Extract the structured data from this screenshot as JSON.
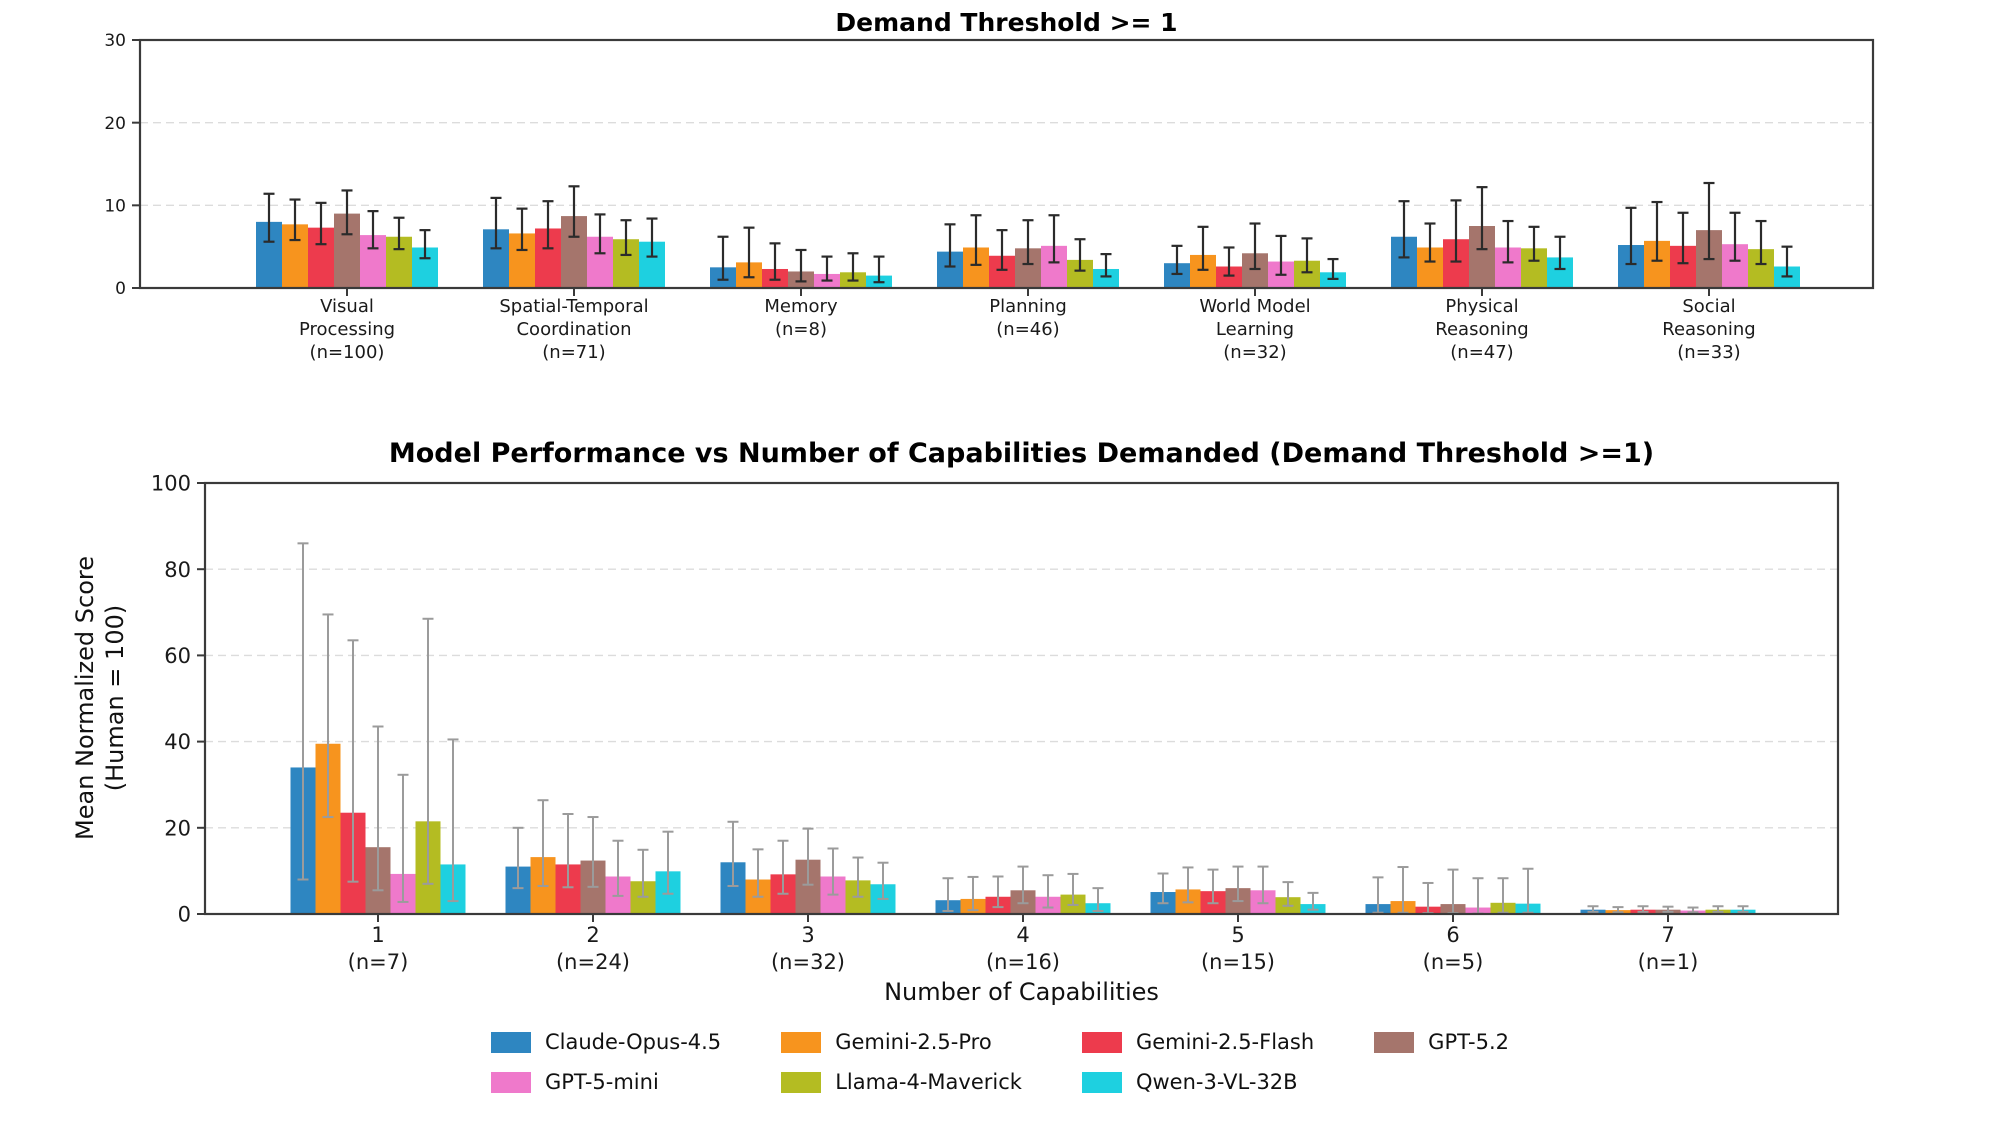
{
  "figure": {
    "background": "#ffffff",
    "spine_color": "#3a3a3a",
    "grid_color": "#dcdcdc"
  },
  "legend": {
    "items": [
      {
        "label": "Claude-Opus-4.5",
        "color": "#2e86c1"
      },
      {
        "label": "Gemini-2.5-Pro",
        "color": "#f7941e"
      },
      {
        "label": "Gemini-2.5-Flash",
        "color": "#ed3b4d"
      },
      {
        "label": "GPT-5.2",
        "color": "#a5756c"
      },
      {
        "label": "GPT-5-mini",
        "color": "#ef79cb"
      },
      {
        "label": "Llama-4-Maverick",
        "color": "#b4bc22"
      },
      {
        "label": "Qwen-3-VL-32B",
        "color": "#1ed0e0"
      }
    ]
  },
  "chart_data": [
    {
      "type": "bar",
      "title": "Demand Threshold >= 1",
      "xlabel": "",
      "ylabel": "",
      "ylim": [
        0,
        30
      ],
      "yticks": [
        0,
        10,
        20,
        30
      ],
      "grid": "dashed-horizontal",
      "legend_position": "none",
      "error_bar_color": "#2b2b2b",
      "categories": [
        [
          "Visual",
          "Processing",
          "(n=100)"
        ],
        [
          "Spatial-Temporal",
          "Coordination",
          "(n=71)"
        ],
        [
          "Memory",
          "(n=8)"
        ],
        [
          "Planning",
          "(n=46)"
        ],
        [
          "World Model",
          "Learning",
          "(n=32)"
        ],
        [
          "Physical",
          "Reasoning",
          "(n=47)"
        ],
        [
          "Social",
          "Reasoning",
          "(n=33)"
        ]
      ],
      "series": [
        {
          "name": "Claude-Opus-4.5",
          "color": "#2e86c1",
          "values": [
            8.0,
            7.1,
            2.5,
            4.4,
            3.0,
            6.2,
            5.2
          ],
          "err_up": [
            3.4,
            3.8,
            3.7,
            3.3,
            2.1,
            4.3,
            4.5
          ],
          "err_down": [
            2.4,
            2.3,
            1.5,
            1.8,
            1.3,
            2.5,
            2.3
          ]
        },
        {
          "name": "Gemini-2.5-Pro",
          "color": "#f7941e",
          "values": [
            7.7,
            6.6,
            3.1,
            4.9,
            4.0,
            4.9,
            5.7
          ],
          "err_up": [
            3.0,
            3.0,
            4.2,
            3.9,
            3.4,
            2.9,
            4.7
          ],
          "err_down": [
            1.9,
            2.0,
            1.8,
            2.1,
            1.8,
            1.7,
            2.4
          ]
        },
        {
          "name": "Gemini-2.5-Flash",
          "color": "#ed3b4d",
          "values": [
            7.3,
            7.2,
            2.3,
            3.9,
            2.6,
            5.9,
            5.1
          ],
          "err_up": [
            3.0,
            3.3,
            3.1,
            3.1,
            2.3,
            4.7,
            4.0
          ],
          "err_down": [
            2.0,
            2.4,
            1.3,
            1.7,
            1.1,
            2.7,
            2.1
          ]
        },
        {
          "name": "GPT-5.2",
          "color": "#a5756c",
          "values": [
            9.0,
            8.7,
            2.0,
            4.8,
            4.2,
            7.5,
            7.0
          ],
          "err_up": [
            2.8,
            3.6,
            2.6,
            3.4,
            3.6,
            4.7,
            5.7
          ],
          "err_down": [
            2.5,
            2.5,
            1.2,
            1.9,
            1.9,
            2.8,
            3.5
          ]
        },
        {
          "name": "GPT-5-mini",
          "color": "#ef79cb",
          "values": [
            6.4,
            6.2,
            1.7,
            5.1,
            3.2,
            4.9,
            5.3
          ],
          "err_up": [
            2.9,
            2.7,
            2.1,
            3.7,
            3.1,
            3.2,
            3.8
          ],
          "err_down": [
            1.6,
            2.0,
            0.8,
            2.0,
            1.6,
            1.8,
            2.0
          ]
        },
        {
          "name": "Llama-4-Maverick",
          "color": "#b4bc22",
          "values": [
            6.2,
            5.9,
            1.9,
            3.4,
            3.3,
            4.8,
            4.7
          ],
          "err_up": [
            2.3,
            2.3,
            2.3,
            2.5,
            2.7,
            2.6,
            3.4
          ],
          "err_down": [
            1.5,
            1.9,
            1.0,
            1.3,
            1.4,
            1.5,
            1.8
          ]
        },
        {
          "name": "Qwen-3-VL-32B",
          "color": "#1ed0e0",
          "values": [
            4.9,
            5.6,
            1.5,
            2.3,
            1.9,
            3.7,
            2.6
          ],
          "err_up": [
            2.1,
            2.8,
            2.3,
            1.8,
            1.6,
            2.5,
            2.4
          ],
          "err_down": [
            1.3,
            1.8,
            0.8,
            0.9,
            0.8,
            1.4,
            1.2
          ]
        }
      ]
    },
    {
      "type": "bar",
      "title": "Model Performance vs Number of Capabilities Demanded (Demand Threshold >=1)",
      "xlabel": "Number of Capabilities",
      "ylabel": "Mean Normalized Score (Human = 100)",
      "ylabel_lines": [
        "Mean Normalized Score",
        "(Human = 100)"
      ],
      "ylim": [
        0,
        100
      ],
      "yticks": [
        0,
        20,
        40,
        60,
        80,
        100
      ],
      "grid": "dashed-horizontal",
      "legend_position": "below",
      "error_bar_color": "#9b9b9b",
      "categories": [
        [
          "1",
          "(n=7)"
        ],
        [
          "2",
          "(n=24)"
        ],
        [
          "3",
          "(n=32)"
        ],
        [
          "4",
          "(n=16)"
        ],
        [
          "5",
          "(n=15)"
        ],
        [
          "6",
          "(n=5)"
        ],
        [
          "7",
          "(n=1)"
        ]
      ],
      "series": [
        {
          "name": "Claude-Opus-4.5",
          "color": "#2e86c1",
          "values": [
            34.0,
            11.0,
            12.0,
            3.2,
            5.1,
            2.3,
            1.0
          ],
          "err_up": [
            52.0,
            9.0,
            9.4,
            5.1,
            4.3,
            6.2,
            0.8
          ],
          "err_down": [
            26.0,
            5.0,
            5.5,
            2.5,
            2.6,
            2.0,
            0.5
          ]
        },
        {
          "name": "Gemini-2.5-Pro",
          "color": "#f7941e",
          "values": [
            39.5,
            13.2,
            8.0,
            3.5,
            5.7,
            3.0,
            0.9
          ],
          "err_up": [
            30.0,
            13.2,
            7.0,
            5.1,
            5.1,
            7.9,
            0.7
          ],
          "err_down": [
            17.0,
            6.7,
            4.0,
            2.6,
            3.0,
            2.7,
            0.5
          ]
        },
        {
          "name": "Gemini-2.5-Flash",
          "color": "#ed3b4d",
          "values": [
            23.5,
            11.5,
            9.2,
            4.0,
            5.3,
            1.7,
            1.0
          ],
          "err_up": [
            40.0,
            11.7,
            7.8,
            4.7,
            5.0,
            5.5,
            0.8
          ],
          "err_down": [
            16.0,
            5.3,
            4.5,
            2.4,
            2.8,
            1.5,
            0.5
          ]
        },
        {
          "name": "GPT-5.2",
          "color": "#a5756c",
          "values": [
            15.5,
            12.4,
            12.6,
            5.5,
            6.0,
            2.3,
            1.0
          ],
          "err_up": [
            28.0,
            10.1,
            7.2,
            5.5,
            5.0,
            8.0,
            0.7
          ],
          "err_down": [
            10.0,
            6.1,
            5.8,
            3.0,
            3.0,
            2.1,
            0.5
          ]
        },
        {
          "name": "GPT-5-mini",
          "color": "#ef79cb",
          "values": [
            9.3,
            8.7,
            8.7,
            4.0,
            5.5,
            1.5,
            0.8
          ],
          "err_up": [
            23.0,
            8.3,
            6.5,
            5.0,
            5.5,
            6.8,
            0.7
          ],
          "err_down": [
            6.5,
            4.5,
            4.2,
            2.5,
            3.0,
            1.4,
            0.4
          ]
        },
        {
          "name": "Llama-4-Maverick",
          "color": "#b4bc22",
          "values": [
            21.5,
            7.6,
            7.8,
            4.5,
            3.9,
            2.6,
            1.0
          ],
          "err_up": [
            47.0,
            7.3,
            5.3,
            4.8,
            3.5,
            5.7,
            0.8
          ],
          "err_down": [
            14.5,
            3.6,
            3.8,
            2.4,
            2.0,
            2.3,
            0.5
          ]
        },
        {
          "name": "Qwen-3-VL-32B",
          "color": "#1ed0e0",
          "values": [
            11.5,
            9.9,
            6.9,
            2.5,
            2.3,
            2.4,
            1.0
          ],
          "err_up": [
            29.0,
            9.2,
            5.0,
            3.5,
            2.6,
            8.1,
            0.8
          ],
          "err_down": [
            8.5,
            5.2,
            3.4,
            1.8,
            1.3,
            2.1,
            0.5
          ]
        }
      ]
    }
  ]
}
